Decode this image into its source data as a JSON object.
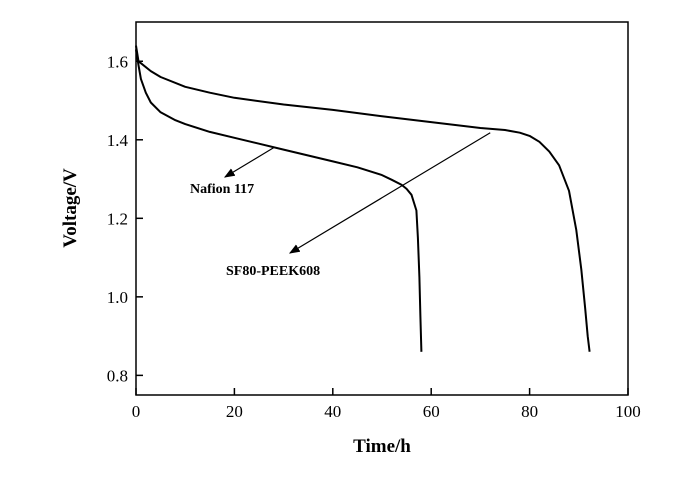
{
  "chart_data": {
    "type": "line",
    "title": "",
    "xlabel": "Time/h",
    "ylabel": "Voltage/V",
    "xlim": [
      0,
      100
    ],
    "ylim": [
      0.75,
      1.7
    ],
    "xticks": [
      0,
      20,
      40,
      60,
      80,
      100
    ],
    "yticks": [
      0.8,
      1.0,
      1.2,
      1.4,
      1.6
    ],
    "xtick_labels": [
      "0",
      "20",
      "40",
      "60",
      "80",
      "100"
    ],
    "ytick_labels": [
      "0.8",
      "1.0",
      "1.2",
      "1.4",
      "1.6"
    ],
    "grid": false,
    "legend": "none",
    "series": [
      {
        "x": [
          0,
          0.5,
          1,
          2,
          3,
          5,
          8,
          10,
          15,
          20,
          25,
          30,
          35,
          40,
          45,
          50,
          52,
          54,
          55,
          56,
          57,
          57.3,
          57.6,
          57.8,
          58
        ],
        "y": [
          1.63,
          1.59,
          1.555,
          1.52,
          1.495,
          1.47,
          1.45,
          1.44,
          1.42,
          1.405,
          1.39,
          1.375,
          1.36,
          1.345,
          1.33,
          1.31,
          1.298,
          1.285,
          1.275,
          1.26,
          1.22,
          1.15,
          1.05,
          0.95,
          0.86
        ]
      },
      {
        "x": [
          0,
          0.5,
          1,
          3,
          5,
          10,
          15,
          20,
          30,
          40,
          50,
          60,
          70,
          75,
          78,
          80,
          82,
          84,
          86,
          88,
          89.5,
          90.5,
          91.3,
          91.8,
          92.2
        ],
        "y": [
          1.64,
          1.6,
          1.595,
          1.575,
          1.56,
          1.535,
          1.52,
          1.507,
          1.49,
          1.476,
          1.46,
          1.445,
          1.43,
          1.425,
          1.418,
          1.41,
          1.395,
          1.37,
          1.335,
          1.27,
          1.17,
          1.07,
          0.97,
          0.9,
          0.86
        ]
      }
    ],
    "annotations": [
      {
        "text": "Nafion 117",
        "points_to_series": 0,
        "at_x": 28,
        "at_y": 1.38
      },
      {
        "text": "SF80-PEEK608",
        "points_to_series": 1,
        "at_x": 72,
        "at_y": 1.418
      }
    ]
  }
}
